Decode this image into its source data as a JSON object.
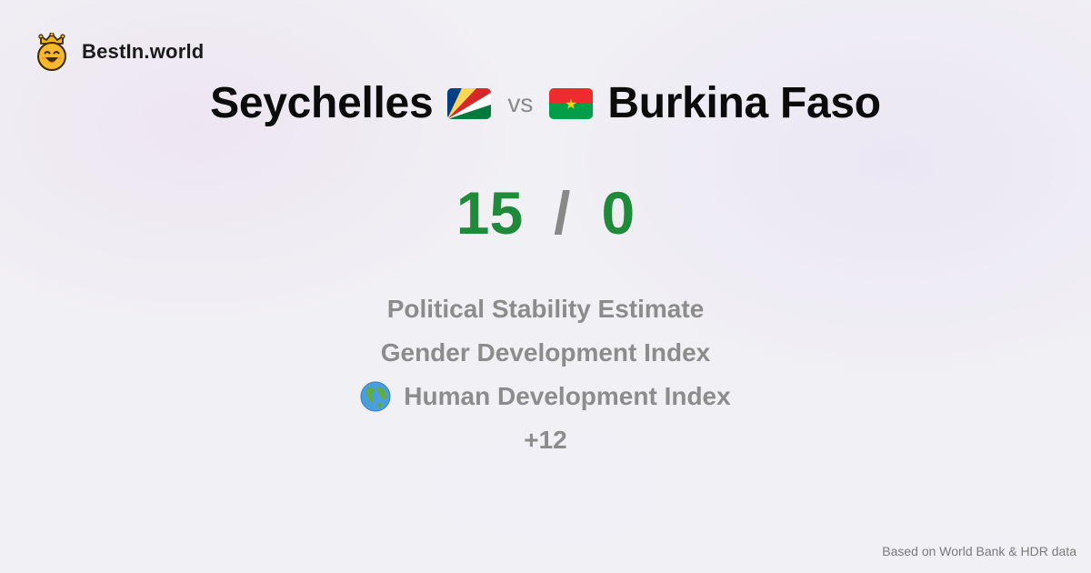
{
  "brand": {
    "name": "BestIn.world",
    "logo_icon": "crowned-smiley-icon"
  },
  "comparison": {
    "left_country": "Seychelles",
    "right_country": "Burkina Faso",
    "vs_label": "vs",
    "left_flag_icon": "seychelles-flag-icon",
    "right_flag_icon": "burkina-faso-flag-icon"
  },
  "score": {
    "left": "15",
    "separator": "/",
    "right": "0",
    "color": "#1f8b3a"
  },
  "metrics": [
    {
      "label": "Political Stability Estimate"
    },
    {
      "label": "Gender Development Index"
    },
    {
      "label": "Human Development Index",
      "icon": "globe-icon"
    }
  ],
  "more": "+12",
  "footer": "Based on World Bank & HDR data"
}
